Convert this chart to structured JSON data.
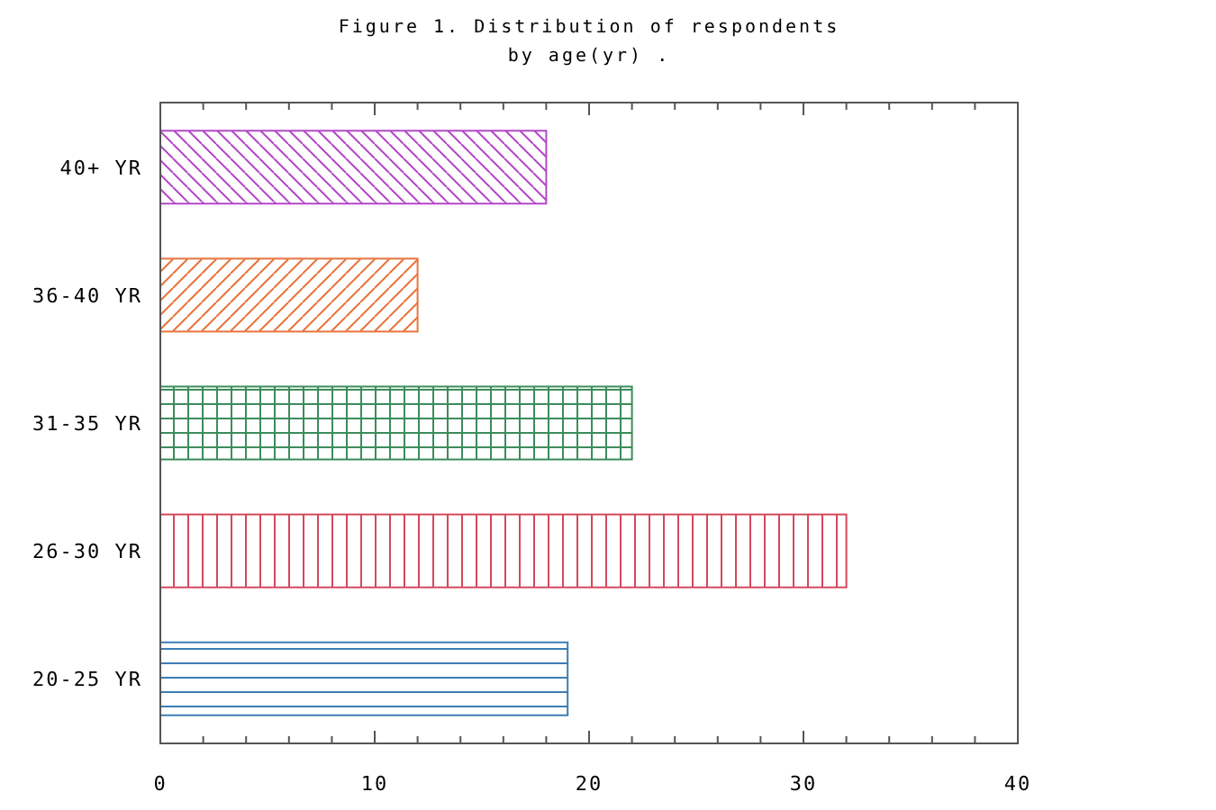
{
  "chart_data": {
    "type": "bar",
    "orientation": "horizontal",
    "title": "Figure 1. Distribution of respondents\nby age(yr) .",
    "categories": [
      "40+ YR",
      "36-40 YR",
      "31-35 YR",
      "26-30 YR",
      "20-25 YR"
    ],
    "values": [
      18,
      12,
      22,
      32,
      19
    ],
    "colors": [
      "#b448c8",
      "#e8743c",
      "#3c8c5c",
      "#d4485c",
      "#3c7cb4"
    ],
    "xlim": [
      0,
      40
    ],
    "xticks": [
      0,
      {
        "value": 2,
        "label": null
      },
      {
        "value": 4,
        "label": null
      },
      {
        "value": 6,
        "label": null
      },
      {
        "value": 8,
        "label": null
      },
      10,
      {
        "value": 12,
        "label": null
      },
      {
        "value": 14,
        "label": null
      },
      {
        "value": 16,
        "label": null
      },
      {
        "value": 18,
        "label": null
      },
      20,
      {
        "value": 22,
        "label": null
      },
      {
        "value": 24,
        "label": null
      },
      {
        "value": 26,
        "label": null
      },
      {
        "value": 28,
        "label": null
      },
      30,
      {
        "value": 32,
        "label": null
      },
      {
        "value": 34,
        "label": null
      },
      {
        "value": 36,
        "label": null
      },
      {
        "value": 38,
        "label": null
      },
      40
    ],
    "grid": false
  }
}
